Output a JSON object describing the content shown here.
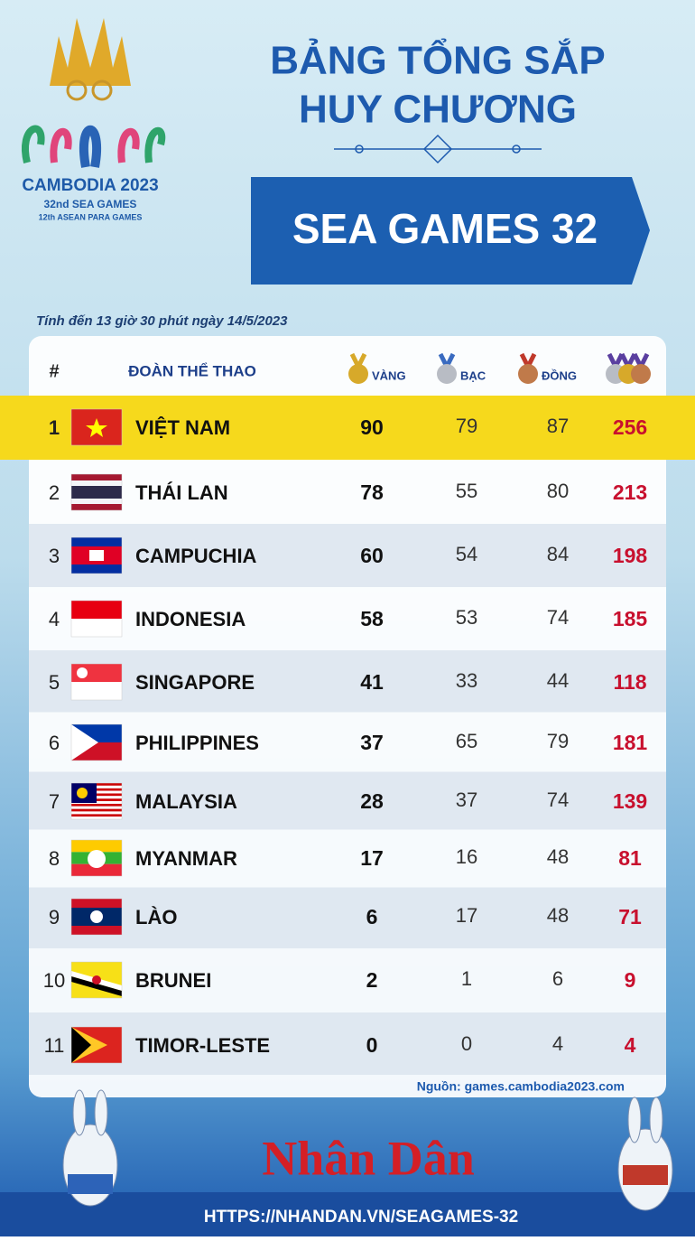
{
  "logo": {
    "name": "CAMBODIA 2023",
    "line1": "32nd SEA GAMES",
    "line2": "12th ASEAN PARA GAMES"
  },
  "header": {
    "title_line1": "BẢNG TỔNG SẮP",
    "title_line2": "HUY CHƯƠNG",
    "banner": "SEA GAMES 32"
  },
  "note": "Tính đến 13 giờ 30 phút ngày 14/5/2023",
  "table": {
    "columns": [
      "#",
      "ĐOÀN THỂ THAO",
      "VÀNG",
      "BẠC",
      "ĐỒNG"
    ],
    "rows": [
      [
        1,
        "VIỆT NAM",
        90,
        79,
        87,
        256
      ],
      [
        2,
        "THÁI LAN",
        78,
        55,
        80,
        213
      ],
      [
        3,
        "CAMPUCHIA",
        60,
        54,
        84,
        198
      ],
      [
        4,
        "INDONESIA",
        58,
        53,
        74,
        185
      ],
      [
        5,
        "SINGAPORE",
        41,
        33,
        44,
        118
      ],
      [
        6,
        "PHILIPPINES",
        37,
        65,
        79,
        181
      ],
      [
        7,
        "MALAYSIA",
        28,
        37,
        74,
        139
      ],
      [
        8,
        "MYANMAR",
        17,
        16,
        48,
        81
      ],
      [
        9,
        "LÀO",
        6,
        17,
        48,
        71
      ],
      [
        10,
        "BRUNEI",
        2,
        1,
        6,
        9
      ],
      [
        11,
        "TIMOR-LESTE",
        0,
        0,
        4,
        4
      ]
    ]
  },
  "source": "Nguồn: games.cambodia2023.com",
  "brand": "Nhân Dân",
  "url": "HTTPS://NHANDAN.VN/SEAGAMES-32"
}
